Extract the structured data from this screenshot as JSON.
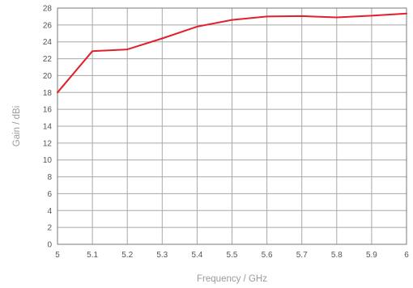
{
  "chart_data": {
    "type": "line",
    "xlabel": "Frequency / GHz",
    "ylabel": "Gain / dBi",
    "xlim": [
      5,
      6
    ],
    "ylim": [
      0,
      28
    ],
    "x_ticks": [
      "5",
      "5.1",
      "5.2",
      "5.3",
      "5.4",
      "5.5",
      "5.6",
      "5.7",
      "5.8",
      "5.9",
      "6"
    ],
    "y_ticks": [
      "0",
      "2",
      "4",
      "6",
      "8",
      "10",
      "12",
      "14",
      "16",
      "18",
      "20",
      "22",
      "24",
      "26",
      "28"
    ],
    "grid": true,
    "legend": "none",
    "series": [
      {
        "color": "#e0202a",
        "x": [
          5.0,
          5.1,
          5.2,
          5.3,
          5.4,
          5.5,
          5.6,
          5.7,
          5.8,
          5.9,
          6.0
        ],
        "y": [
          18.0,
          22.9,
          23.1,
          24.4,
          25.8,
          26.6,
          27.0,
          27.05,
          26.9,
          27.1,
          27.35
        ]
      }
    ]
  }
}
